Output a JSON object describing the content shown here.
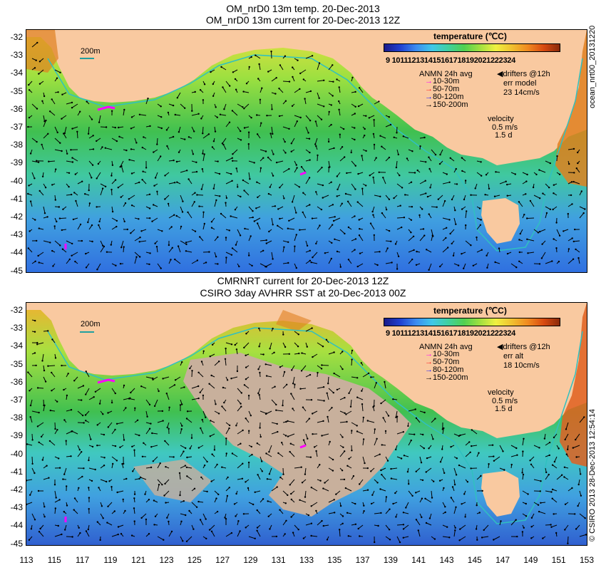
{
  "top_panel": {
    "title_line1": "OM_nrD0 13m temp. 20-Dec-2013",
    "title_line2": "OM_nrD0 13m current for 20-Dec-2013 12Z",
    "legend": {
      "title": "temperature (℃C)",
      "scale_numbers": "9 101112131415161718192021222324",
      "depth_header": "ANMN 24h avg",
      "depth_bands": [
        "10-30m",
        "50-70m",
        "80-120m",
        "150-200m"
      ],
      "depth_colors": [
        "#ff00ff",
        "#ff2020",
        "#2020ff",
        "#000000"
      ],
      "drifters": "◀drifters @12h",
      "err_label": "err model",
      "err_values": "23 14cm/s",
      "velocity_label": "velocity",
      "velocity_value": "0.5 m/s",
      "velocity_ratio": "1.5 d"
    },
    "scale_label": "200m",
    "side_text": "ocean_nrt00_20131220"
  },
  "bottom_panel": {
    "title_line1": "CMRNRT current for 20-Dec-2013 12Z",
    "title_line2": "CSIRO 3day AVHRR SST at 20-Dec-2013 00Z",
    "legend": {
      "title": "temperature (℃C)",
      "scale_numbers": "9 101112131415161718192021222324",
      "depth_header": "ANMN 24h avg",
      "depth_bands": [
        "10-30m",
        "50-70m",
        "80-120m",
        "150-200m"
      ],
      "depth_colors": [
        "#ff00ff",
        "#ff2020",
        "#2020ff",
        "#000000"
      ],
      "drifters": "◀drifters @12h",
      "err_label": "err alt",
      "err_values": "18 10cm/s",
      "velocity_label": "velocity",
      "velocity_value": "0.5 m/s",
      "velocity_ratio": "1.5 d"
    },
    "scale_label": "200m",
    "side_text": "© CSIRO 2013  28-Dec-2013 12:54:14"
  },
  "axes": {
    "lat_ticks": [
      "-32",
      "-33",
      "-34",
      "-35",
      "-36",
      "-37",
      "-38",
      "-39",
      "-40",
      "-41",
      "-42",
      "-43",
      "-44",
      "-45"
    ],
    "lon_ticks": [
      "113",
      "115",
      "117",
      "119",
      "121",
      "123",
      "125",
      "127",
      "129",
      "131",
      "133",
      "135",
      "137",
      "139",
      "141",
      "143",
      "145",
      "147",
      "149",
      "151",
      "153"
    ],
    "lon_range": [
      113,
      153
    ],
    "lat_range": [
      -31.6,
      -45
    ]
  },
  "colors": {
    "land": "#f9c9a0",
    "cloud_gap": "#c8b09c",
    "isobath": "#30c0c0"
  }
}
